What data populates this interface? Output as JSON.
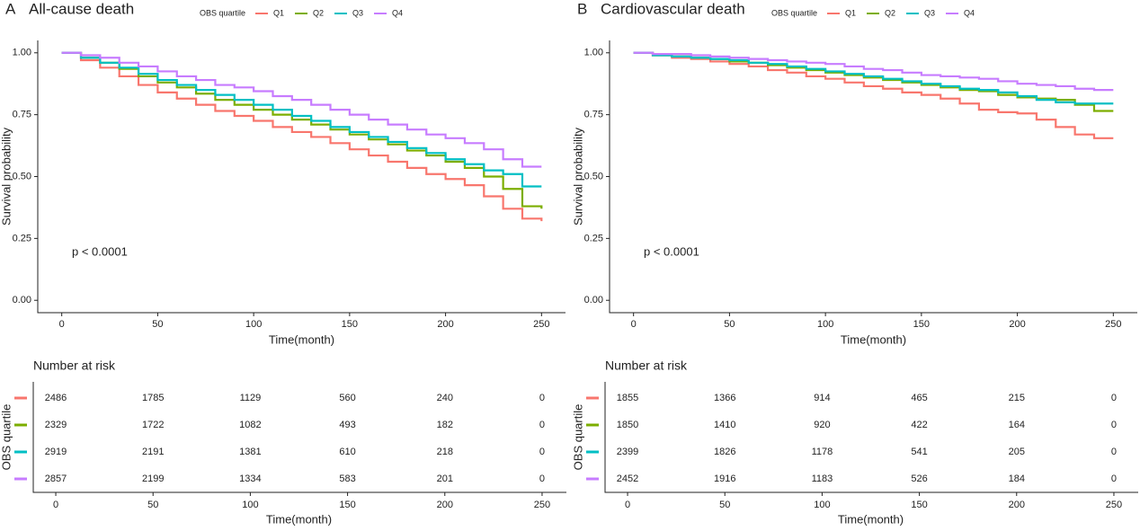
{
  "chart_data": [
    {
      "type": "step",
      "label": "A",
      "title": "All-cause death",
      "legend_title": "OBS quartile",
      "xlabel": "Time(month)",
      "ylabel": "Survival probability",
      "annotation": "p < 0.0001",
      "x": [
        0,
        10,
        20,
        30,
        40,
        50,
        60,
        70,
        80,
        90,
        100,
        110,
        120,
        130,
        140,
        150,
        160,
        170,
        180,
        190,
        200,
        210,
        220,
        230,
        240,
        250
      ],
      "xlim": [
        -12.5,
        262.5
      ],
      "ylim": [
        -0.05,
        1.05
      ],
      "xticks": [
        0,
        50,
        100,
        150,
        200,
        250
      ],
      "yticks": [
        {
          "value": 0,
          "label": "0.00"
        },
        {
          "value": 0.25,
          "label": "0.25"
        },
        {
          "value": 0.5,
          "label": "0.50"
        },
        {
          "value": 0.75,
          "label": "0.75"
        },
        {
          "value": 1,
          "label": "1.00"
        }
      ],
      "series": [
        {
          "name": "Q1",
          "color": "#f8766d",
          "values": [
            1,
            0.97,
            0.94,
            0.905,
            0.87,
            0.84,
            0.815,
            0.79,
            0.765,
            0.745,
            0.725,
            0.7,
            0.68,
            0.66,
            0.635,
            0.61,
            0.585,
            0.56,
            0.535,
            0.51,
            0.49,
            0.465,
            0.42,
            0.37,
            0.33,
            0.32
          ]
        },
        {
          "name": "Q2",
          "color": "#7cae00",
          "values": [
            1,
            0.98,
            0.96,
            0.935,
            0.905,
            0.88,
            0.86,
            0.835,
            0.81,
            0.79,
            0.77,
            0.75,
            0.73,
            0.71,
            0.69,
            0.67,
            0.65,
            0.63,
            0.605,
            0.585,
            0.56,
            0.535,
            0.5,
            0.45,
            0.38,
            0.37
          ]
        },
        {
          "name": "Q3",
          "color": "#00bfc4",
          "values": [
            1,
            0.98,
            0.96,
            0.94,
            0.915,
            0.89,
            0.87,
            0.85,
            0.83,
            0.81,
            0.79,
            0.77,
            0.745,
            0.725,
            0.7,
            0.68,
            0.66,
            0.64,
            0.615,
            0.595,
            0.57,
            0.55,
            0.525,
            0.51,
            0.46,
            0.46
          ]
        },
        {
          "name": "Q4",
          "color": "#c77cff",
          "values": [
            1,
            0.99,
            0.98,
            0.96,
            0.945,
            0.925,
            0.905,
            0.89,
            0.87,
            0.86,
            0.845,
            0.825,
            0.81,
            0.79,
            0.77,
            0.75,
            0.73,
            0.71,
            0.69,
            0.67,
            0.655,
            0.635,
            0.61,
            0.57,
            0.54,
            0.54
          ]
        }
      ],
      "risk_table": {
        "title": "Number at risk",
        "ylabel": "OBS quartile",
        "rows": [
          [
            2486,
            1785,
            1129,
            560,
            240,
            0
          ],
          [
            2329,
            1722,
            1082,
            493,
            182,
            0
          ],
          [
            2919,
            2191,
            1381,
            610,
            218,
            0
          ],
          [
            2857,
            2199,
            1334,
            583,
            201,
            0
          ]
        ]
      }
    },
    {
      "type": "step",
      "label": "B",
      "title": "Cardiovascular death",
      "legend_title": "OBS quartile",
      "xlabel": "Time(month)",
      "ylabel": "Survival probability",
      "annotation": "p < 0.0001",
      "x": [
        0,
        10,
        20,
        30,
        40,
        50,
        60,
        70,
        80,
        90,
        100,
        110,
        120,
        130,
        140,
        150,
        160,
        170,
        180,
        190,
        200,
        210,
        220,
        230,
        240,
        250
      ],
      "xlim": [
        -12.5,
        262.5
      ],
      "ylim": [
        -0.05,
        1.05
      ],
      "xticks": [
        0,
        50,
        100,
        150,
        200,
        250
      ],
      "yticks": [
        {
          "value": 0,
          "label": "0.00"
        },
        {
          "value": 0.25,
          "label": "0.25"
        },
        {
          "value": 0.5,
          "label": "0.50"
        },
        {
          "value": 0.75,
          "label": "0.75"
        },
        {
          "value": 1,
          "label": "1.00"
        }
      ],
      "series": [
        {
          "name": "Q1",
          "color": "#f8766d",
          "values": [
            1,
            0.99,
            0.98,
            0.975,
            0.965,
            0.955,
            0.945,
            0.93,
            0.92,
            0.905,
            0.895,
            0.88,
            0.865,
            0.855,
            0.84,
            0.83,
            0.815,
            0.795,
            0.77,
            0.76,
            0.755,
            0.73,
            0.7,
            0.67,
            0.655,
            0.655
          ]
        },
        {
          "name": "Q2",
          "color": "#7cae00",
          "values": [
            1,
            0.99,
            0.985,
            0.98,
            0.975,
            0.965,
            0.96,
            0.95,
            0.94,
            0.93,
            0.92,
            0.91,
            0.9,
            0.89,
            0.88,
            0.87,
            0.86,
            0.85,
            0.845,
            0.83,
            0.82,
            0.815,
            0.81,
            0.79,
            0.765,
            0.765
          ]
        },
        {
          "name": "Q3",
          "color": "#00bfc4",
          "values": [
            1,
            0.99,
            0.985,
            0.98,
            0.975,
            0.97,
            0.96,
            0.955,
            0.945,
            0.935,
            0.925,
            0.915,
            0.905,
            0.895,
            0.885,
            0.875,
            0.865,
            0.855,
            0.85,
            0.84,
            0.825,
            0.81,
            0.8,
            0.795,
            0.795,
            0.795
          ]
        },
        {
          "name": "Q4",
          "color": "#c77cff",
          "values": [
            1,
            0.995,
            0.995,
            0.99,
            0.985,
            0.98,
            0.975,
            0.97,
            0.965,
            0.96,
            0.955,
            0.945,
            0.935,
            0.93,
            0.92,
            0.91,
            0.905,
            0.9,
            0.895,
            0.885,
            0.875,
            0.87,
            0.865,
            0.855,
            0.85,
            0.85
          ]
        }
      ],
      "risk_table": {
        "title": "Number at risk",
        "ylabel": "OBS quartile",
        "rows": [
          [
            1855,
            1366,
            914,
            465,
            215,
            0
          ],
          [
            1850,
            1410,
            920,
            422,
            164,
            0
          ],
          [
            2399,
            1826,
            1178,
            541,
            205,
            0
          ],
          [
            2452,
            1916,
            1183,
            526,
            184,
            0
          ]
        ]
      }
    }
  ]
}
